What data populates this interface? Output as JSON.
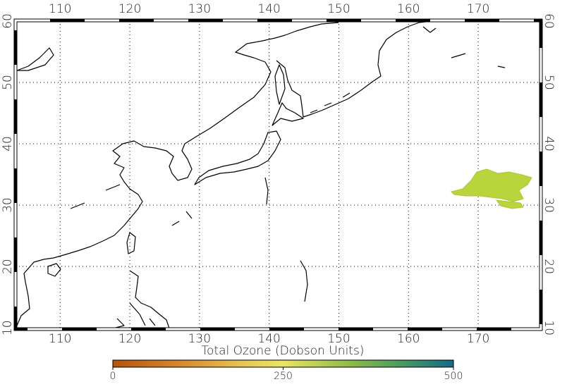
{
  "map": {
    "lonlim": [
      103.6,
      179
    ],
    "latlim": [
      9.8,
      60.1
    ],
    "lon_ticks": [
      110,
      120,
      130,
      140,
      150,
      160,
      170
    ],
    "lat_ticks": [
      10,
      20,
      30,
      40,
      50,
      60
    ],
    "colorbar": {
      "title": "Total Ozone (Dobson Units)",
      "range": [
        0,
        500
      ],
      "ticks": [
        0,
        250,
        500
      ]
    }
  }
}
